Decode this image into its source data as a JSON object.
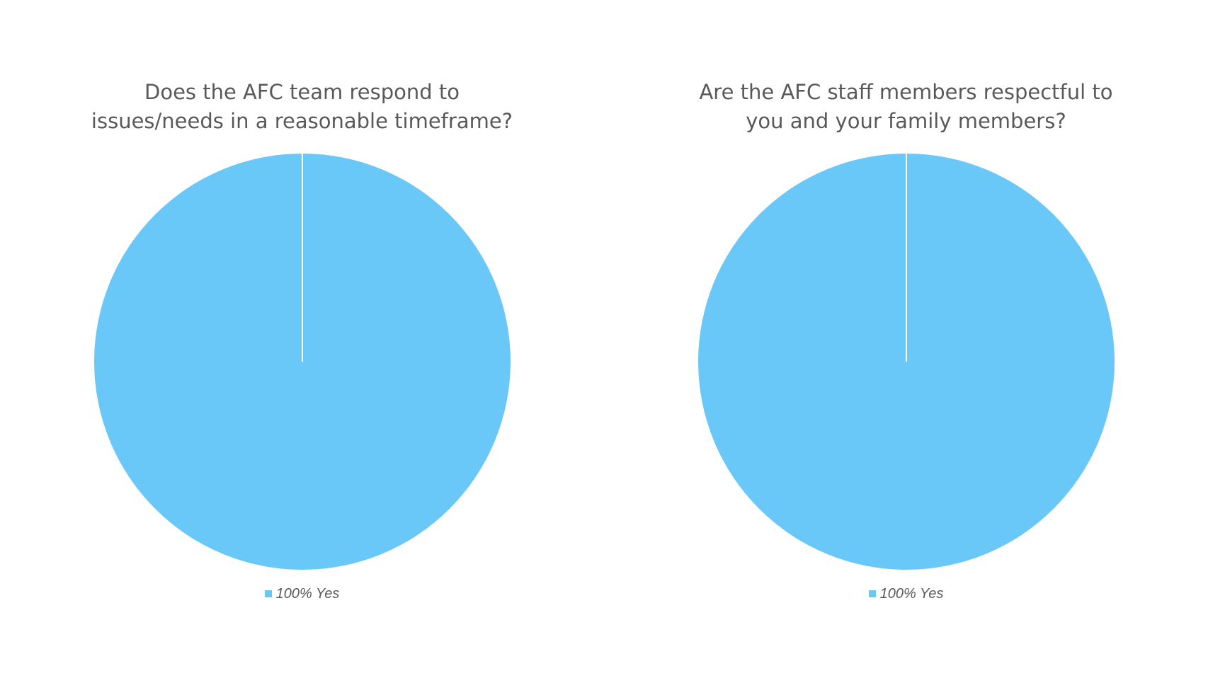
{
  "colors": {
    "slice": "#6AC8F8",
    "separator": "#FFFFFF",
    "text": "#595959"
  },
  "chart_data": [
    {
      "type": "pie",
      "title_lines": [
        "Does the AFC team respond to",
        "issues/needs in a reasonable timeframe?"
      ],
      "slices": [
        {
          "label": "Yes",
          "percent": 100,
          "value": 100
        }
      ],
      "legend": {
        "position": "bottom",
        "entries": [
          "100% Yes"
        ]
      }
    },
    {
      "type": "pie",
      "title_lines": [
        "Are the AFC staff members respectful to",
        "you and your family members?"
      ],
      "slices": [
        {
          "label": "Yes",
          "percent": 100,
          "value": 100
        }
      ],
      "legend": {
        "position": "bottom",
        "entries": [
          "100% Yes"
        ]
      }
    }
  ]
}
